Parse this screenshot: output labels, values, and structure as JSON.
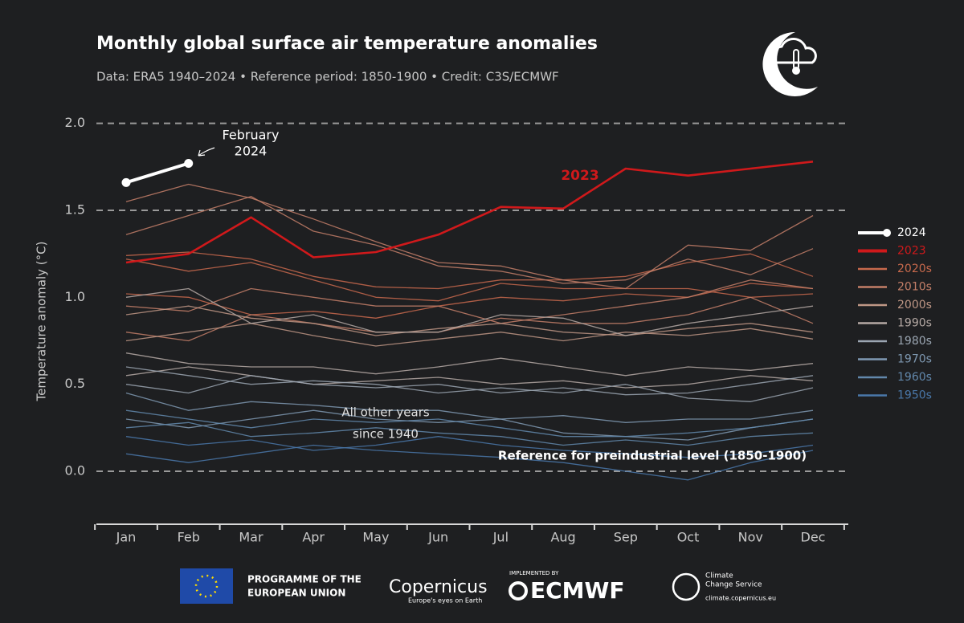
{
  "chart_data": {
    "type": "line",
    "title": "Monthly global surface air temperature anomalies",
    "subtitle": "Data: ERA5 1940–2024 • Reference period: 1850-1900 • Credit: C3S/ECMWF",
    "y_label": "Temperature anomaly (°C)",
    "categories": [
      "Jan",
      "Feb",
      "Mar",
      "Apr",
      "May",
      "Jun",
      "Jul",
      "Aug",
      "Sep",
      "Oct",
      "Nov",
      "Dec"
    ],
    "ylim": [
      -0.3,
      2.1
    ],
    "yticks": [
      {
        "value": 0,
        "label": "0.0"
      },
      0.5,
      {
        "value": 1,
        "label": "1.0"
      },
      1.5,
      {
        "value": 2,
        "label": "2.0"
      }
    ],
    "reference_lines": [
      0,
      1.5,
      2
    ],
    "annotations": {
      "february_2024": [
        "February",
        "2024"
      ],
      "year_2023": "2023",
      "other_years": [
        "All other years",
        "since 1940"
      ],
      "reference": "Reference for preindustrial level (1850-1900)"
    },
    "series": [
      {
        "name": "2024",
        "color": "#ffffff",
        "values": [
          1.66,
          1.77,
          null,
          null,
          null,
          null,
          null,
          null,
          null,
          null,
          null,
          null
        ]
      },
      {
        "name": "2023",
        "color": "#d0191b",
        "values": [
          1.2,
          1.25,
          1.46,
          1.23,
          1.26,
          1.36,
          1.52,
          1.51,
          1.74,
          1.7,
          1.74,
          1.78
        ]
      },
      {
        "name": "2020s",
        "color": "#c8694c",
        "lines": [
          [
            1.24,
            1.26,
            1.22,
            1.12,
            1.06,
            1.05,
            1.1,
            1.1,
            1.12,
            1.2,
            1.25,
            1.12
          ],
          [
            1.22,
            1.15,
            1.2,
            1.1,
            1.0,
            0.98,
            1.08,
            1.05,
            1.05,
            1.05,
            1.0,
            1.02
          ],
          [
            1.02,
            1.0,
            0.9,
            0.92,
            0.88,
            0.95,
            1.0,
            0.98,
            1.02,
            1.0,
            1.08,
            1.05
          ]
        ]
      },
      {
        "name": "2010s",
        "color": "#c47f68",
        "lines": [
          [
            1.36,
            1.47,
            1.58,
            1.38,
            1.3,
            1.18,
            1.15,
            1.08,
            1.1,
            1.22,
            1.13,
            1.28
          ],
          [
            1.55,
            1.65,
            1.57,
            1.45,
            1.32,
            1.2,
            1.18,
            1.1,
            1.05,
            1.3,
            1.27,
            1.47
          ],
          [
            0.95,
            0.92,
            1.05,
            1.0,
            0.95,
            0.95,
            0.85,
            0.9,
            0.95,
            1.0,
            1.1,
            1.05
          ],
          [
            0.8,
            0.75,
            0.9,
            0.85,
            0.8,
            0.8,
            0.88,
            0.85,
            0.85,
            0.9,
            1.0,
            0.85
          ]
        ]
      },
      {
        "name": "2000s",
        "color": "#bf9785",
        "lines": [
          [
            0.9,
            0.95,
            0.88,
            0.85,
            0.78,
            0.82,
            0.85,
            0.8,
            0.78,
            0.82,
            0.85,
            0.8
          ],
          [
            0.75,
            0.8,
            0.85,
            0.78,
            0.72,
            0.76,
            0.8,
            0.75,
            0.8,
            0.78,
            0.82,
            0.76
          ]
        ]
      },
      {
        "name": "1990s",
        "color": "#b5a9a4",
        "lines": [
          [
            0.68,
            0.62,
            0.6,
            0.6,
            0.56,
            0.6,
            0.65,
            0.6,
            0.55,
            0.6,
            0.58,
            0.62
          ],
          [
            0.55,
            0.6,
            0.55,
            0.5,
            0.52,
            0.54,
            0.5,
            0.52,
            0.48,
            0.5,
            0.55,
            0.52
          ],
          [
            1.0,
            1.05,
            0.85,
            0.9,
            0.8,
            0.8,
            0.9,
            0.88,
            0.78,
            0.85,
            0.9,
            0.95
          ]
        ]
      },
      {
        "name": "1980s",
        "color": "#9ba6b2",
        "lines": [
          [
            0.5,
            0.45,
            0.55,
            0.5,
            0.48,
            0.5,
            0.45,
            0.48,
            0.44,
            0.45,
            0.5,
            0.55
          ],
          [
            0.6,
            0.55,
            0.5,
            0.52,
            0.5,
            0.45,
            0.48,
            0.45,
            0.5,
            0.42,
            0.4,
            0.48
          ]
        ]
      },
      {
        "name": "1970s",
        "color": "#7f99b2",
        "lines": [
          [
            0.3,
            0.25,
            0.3,
            0.35,
            0.3,
            0.28,
            0.3,
            0.22,
            0.2,
            0.18,
            0.25,
            0.3
          ],
          [
            0.45,
            0.35,
            0.4,
            0.38,
            0.35,
            0.35,
            0.3,
            0.32,
            0.28,
            0.3,
            0.3,
            0.35
          ]
        ]
      },
      {
        "name": "1960s",
        "color": "#6288ac",
        "lines": [
          [
            0.25,
            0.28,
            0.2,
            0.22,
            0.25,
            0.22,
            0.2,
            0.15,
            0.18,
            0.15,
            0.2,
            0.22
          ],
          [
            0.35,
            0.3,
            0.25,
            0.3,
            0.28,
            0.3,
            0.25,
            0.2,
            0.2,
            0.22,
            0.25,
            0.3
          ]
        ]
      },
      {
        "name": "1950s",
        "color": "#4a78aa",
        "lines": [
          [
            0.1,
            0.05,
            0.1,
            0.15,
            0.12,
            0.1,
            0.08,
            0.05,
            0.0,
            -0.05,
            0.05,
            0.12
          ],
          [
            0.2,
            0.15,
            0.18,
            0.12,
            0.15,
            0.2,
            0.15,
            0.12,
            0.1,
            0.08,
            0.1,
            0.15
          ]
        ]
      }
    ]
  },
  "footer": {
    "eu": [
      "PROGRAMME OF THE",
      "EUROPEAN UNION"
    ],
    "copernicus": "Copernicus",
    "copernicus_tagline": "Europe's eyes on Earth",
    "implemented_by": "IMPLEMENTED BY",
    "ecmwf": "ECMWF",
    "c3s": [
      "Climate",
      "Change Service"
    ],
    "url": "climate.copernicus.eu"
  }
}
